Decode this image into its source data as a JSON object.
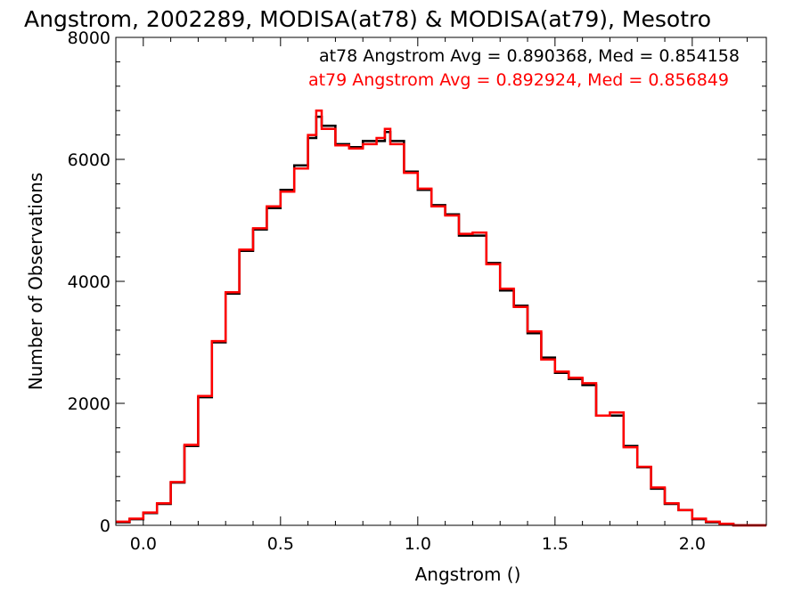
{
  "chart_data": {
    "type": "line",
    "title": "Angstrom, 2002289, MODISA(at78) & MODISA(at79), Mesotro",
    "xlabel": "Angstrom ()",
    "ylabel": "Number of Observations",
    "xlim": [
      -0.1,
      2.27
    ],
    "ylim": [
      0,
      8000
    ],
    "x_ticks": [
      0.0,
      0.5,
      1.0,
      1.5,
      2.0
    ],
    "x_tick_labels": [
      "0.0",
      "0.5",
      "1.0",
      "1.5",
      "2.0"
    ],
    "y_ticks": [
      0,
      2000,
      4000,
      6000,
      8000
    ],
    "y_tick_labels": [
      "0",
      "2000",
      "4000",
      "6000",
      "8000"
    ],
    "x_minor_step": 0.1,
    "y_minor_step": 400,
    "legend_position": "top-right",
    "colors": {
      "at78": "#000000",
      "at79": "#ff0000"
    },
    "annotations": [
      {
        "text": "at78 Angstrom Avg = 0.890368, Med = 0.854158",
        "color": "#000000"
      },
      {
        "text": "at79 Angstrom Avg = 0.892924, Med = 0.856849",
        "color": "#ff0000"
      }
    ],
    "series": [
      {
        "name": "at78",
        "color": "#000000",
        "x": [
          -0.1,
          -0.05,
          0.0,
          0.05,
          0.1,
          0.15,
          0.2,
          0.25,
          0.3,
          0.35,
          0.4,
          0.45,
          0.5,
          0.55,
          0.6,
          0.63,
          0.65,
          0.7,
          0.75,
          0.8,
          0.85,
          0.88,
          0.9,
          0.95,
          1.0,
          1.05,
          1.1,
          1.15,
          1.2,
          1.25,
          1.3,
          1.35,
          1.4,
          1.45,
          1.5,
          1.55,
          1.6,
          1.65,
          1.7,
          1.75,
          1.8,
          1.85,
          1.9,
          1.95,
          2.0,
          2.05,
          2.1,
          2.15,
          2.2,
          2.27
        ],
        "values": [
          50,
          100,
          200,
          350,
          700,
          1300,
          2100,
          3000,
          3800,
          4500,
          4850,
          5200,
          5500,
          5900,
          6350,
          6700,
          6550,
          6250,
          6200,
          6300,
          6300,
          6450,
          6300,
          5800,
          5500,
          5250,
          5100,
          4750,
          4750,
          4300,
          3850,
          3600,
          3150,
          2750,
          2500,
          2400,
          2300,
          1800,
          1800,
          1300,
          950,
          600,
          350,
          250,
          100,
          50,
          20,
          0,
          0,
          0
        ]
      },
      {
        "name": "at79",
        "color": "#ff0000",
        "x": [
          -0.1,
          -0.05,
          0.0,
          0.05,
          0.1,
          0.15,
          0.2,
          0.25,
          0.3,
          0.35,
          0.4,
          0.45,
          0.5,
          0.55,
          0.6,
          0.63,
          0.65,
          0.7,
          0.75,
          0.8,
          0.85,
          0.88,
          0.9,
          0.95,
          1.0,
          1.05,
          1.1,
          1.15,
          1.2,
          1.25,
          1.3,
          1.35,
          1.4,
          1.45,
          1.5,
          1.55,
          1.6,
          1.65,
          1.7,
          1.75,
          1.8,
          1.85,
          1.9,
          1.95,
          2.0,
          2.05,
          2.1,
          2.15,
          2.2,
          2.27
        ],
        "values": [
          60,
          110,
          210,
          360,
          710,
          1320,
          2120,
          3020,
          3820,
          4520,
          4870,
          5230,
          5470,
          5850,
          6400,
          6800,
          6500,
          6230,
          6180,
          6250,
          6350,
          6500,
          6250,
          5780,
          5520,
          5230,
          5080,
          4780,
          4800,
          4280,
          3880,
          3580,
          3180,
          2720,
          2520,
          2420,
          2330,
          1800,
          1850,
          1280,
          960,
          620,
          360,
          250,
          110,
          60,
          25,
          0,
          0,
          0
        ]
      }
    ]
  }
}
